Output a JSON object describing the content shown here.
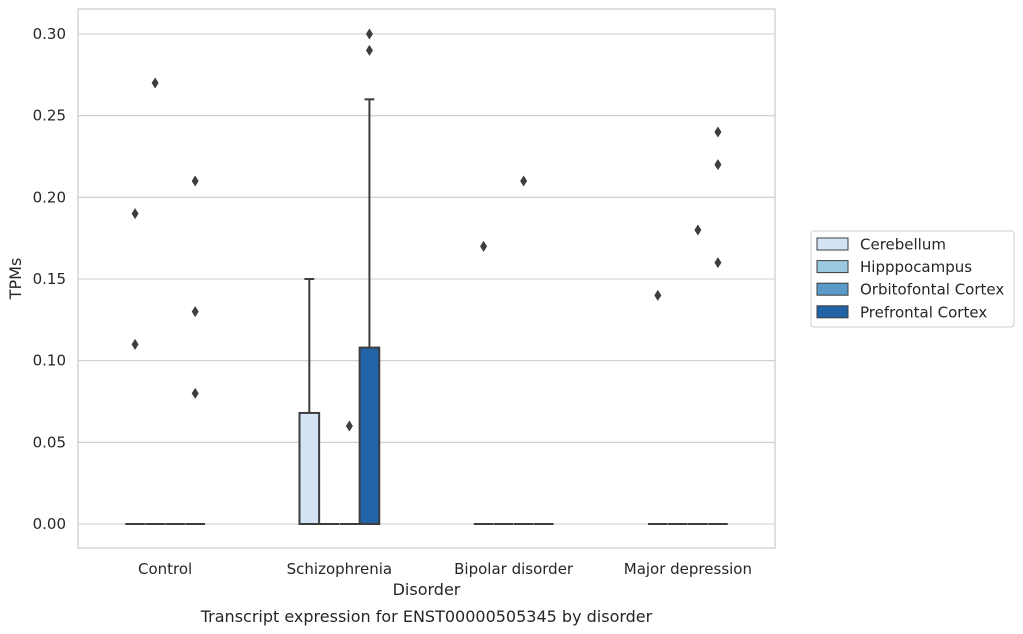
{
  "chart_data": {
    "type": "box",
    "caption": "Transcript expression for ENST00000505345 by disorder",
    "xlabel": "Disorder",
    "ylabel": "TPMs",
    "ylim": [
      -0.015,
      0.315
    ],
    "yticks": [
      0.0,
      0.05,
      0.1,
      0.15,
      0.2,
      0.25,
      0.3
    ],
    "ytick_labels": [
      "0.00",
      "0.05",
      "0.10",
      "0.15",
      "0.20",
      "0.25",
      "0.30"
    ],
    "grid": "horizontal",
    "legend_position": "right",
    "categories": [
      "Control",
      "Schizophrenia",
      "Bipolar disorder",
      "Major depression"
    ],
    "series": [
      {
        "name": "Cerebellum",
        "color": "#d3e3f3",
        "boxes": [
          {
            "q1": 0,
            "median": 0,
            "q3": 0,
            "whisker_low": 0,
            "whisker_high": 0,
            "outliers": [
              0.19,
              0.11
            ]
          },
          {
            "q1": 0,
            "median": 0,
            "q3": 0.068,
            "whisker_low": 0,
            "whisker_high": 0.15,
            "outliers": []
          },
          {
            "q1": 0,
            "median": 0,
            "q3": 0,
            "whisker_low": 0,
            "whisker_high": 0,
            "outliers": [
              0.17
            ]
          },
          {
            "q1": 0,
            "median": 0,
            "q3": 0,
            "whisker_low": 0,
            "whisker_high": 0,
            "outliers": [
              0.14
            ]
          }
        ]
      },
      {
        "name": "Hipppocampus",
        "color": "#9ac8e0",
        "boxes": [
          {
            "q1": 0,
            "median": 0,
            "q3": 0,
            "whisker_low": 0,
            "whisker_high": 0,
            "outliers": [
              0.27
            ]
          },
          {
            "q1": 0,
            "median": 0,
            "q3": 0,
            "whisker_low": 0,
            "whisker_high": 0,
            "outliers": []
          },
          {
            "q1": 0,
            "median": 0,
            "q3": 0,
            "whisker_low": 0,
            "whisker_high": 0,
            "outliers": []
          },
          {
            "q1": 0,
            "median": 0,
            "q3": 0,
            "whisker_low": 0,
            "whisker_high": 0,
            "outliers": []
          }
        ]
      },
      {
        "name": "Orbitofontal Cortex",
        "color": "#5a9bc9",
        "boxes": [
          {
            "q1": 0,
            "median": 0,
            "q3": 0,
            "whisker_low": 0,
            "whisker_high": 0,
            "outliers": []
          },
          {
            "q1": 0,
            "median": 0,
            "q3": 0,
            "whisker_low": 0,
            "whisker_high": 0,
            "outliers": [
              0.06
            ]
          },
          {
            "q1": 0,
            "median": 0,
            "q3": 0,
            "whisker_low": 0,
            "whisker_high": 0,
            "outliers": [
              0.21
            ]
          },
          {
            "q1": 0,
            "median": 0,
            "q3": 0,
            "whisker_low": 0,
            "whisker_high": 0,
            "outliers": [
              0.18
            ]
          }
        ]
      },
      {
        "name": "Prefrontal Cortex",
        "color": "#2262a6",
        "boxes": [
          {
            "q1": 0,
            "median": 0,
            "q3": 0,
            "whisker_low": 0,
            "whisker_high": 0,
            "outliers": [
              0.21,
              0.13,
              0.08
            ]
          },
          {
            "q1": 0,
            "median": 0,
            "q3": 0.108,
            "whisker_low": 0,
            "whisker_high": 0.26,
            "outliers": [
              0.3,
              0.29
            ]
          },
          {
            "q1": 0,
            "median": 0,
            "q3": 0,
            "whisker_low": 0,
            "whisker_high": 0,
            "outliers": []
          },
          {
            "q1": 0,
            "median": 0,
            "q3": 0,
            "whisker_low": 0,
            "whisker_high": 0,
            "outliers": [
              0.24,
              0.22,
              0.16
            ]
          }
        ]
      }
    ]
  }
}
